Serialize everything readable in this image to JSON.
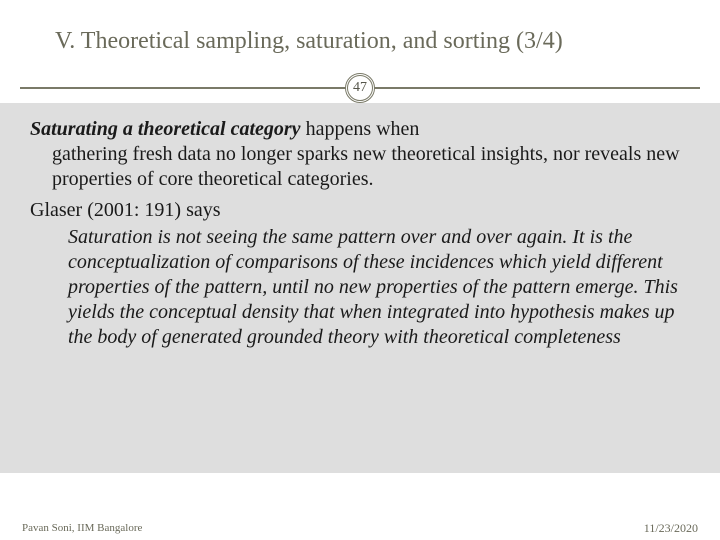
{
  "slide": {
    "title": "V. Theoretical sampling, saturation, and sorting (3/4)",
    "page_number": "47",
    "colors": {
      "title_color": "#6a6a5a",
      "divider_color": "#7a7a68",
      "content_bg": "#dedede",
      "text_color": "#1a1a1a",
      "footer_color": "#6a6a5a",
      "page_bg": "#ffffff"
    },
    "typography": {
      "title_fontsize": 24,
      "body_fontsize": 20,
      "footer_fontsize": 11,
      "font_family": "Georgia"
    },
    "body": {
      "lead_phrase": "Saturating a theoretical category",
      "para1_first": " happens when",
      "para1_rest": "gathering fresh data no longer sparks new theoretical insights, nor reveals new properties of core theoretical categories.",
      "para2": "Glaser (2001: 191) says",
      "quote": "Saturation is not seeing the same pattern over and over again. It is the conceptualization of comparisons of these incidences which yield different properties of the pattern, until no new properties of the pattern emerge. This yields the conceptual density that when integrated into hypothesis makes up the body of generated grounded theory with theoretical completeness"
    },
    "footer": {
      "author": "Pavan Soni, IIM Bangalore",
      "date": "11/23/2020"
    }
  }
}
